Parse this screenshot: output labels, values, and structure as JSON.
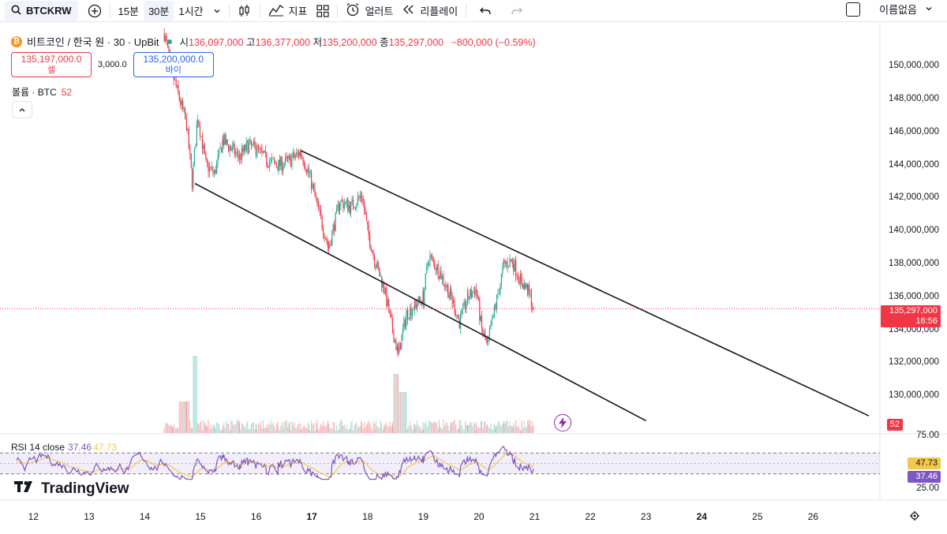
{
  "toolbar": {
    "symbol": "BTCKRW",
    "intervals": [
      "15분",
      "30분",
      "1시간"
    ],
    "active_interval": "30분",
    "indicators_label": "지표",
    "alert_label": "얼러트",
    "replay_label": "리플레이",
    "layout_name": "이름없음"
  },
  "legend": {
    "title": "비트코인 / 한국 원 · 30 · UpBit",
    "open_label": "시",
    "open": "136,097,000",
    "high_label": "고",
    "high": "136,377,000",
    "low_label": "저",
    "low": "135,200,000",
    "close_label": "종",
    "close": "135,297,000",
    "change": "−800,000 (−0.59%)"
  },
  "trade": {
    "sell_price": "135,197,000.0",
    "sell_label": "셀",
    "spread": "3,000.0",
    "buy_price": "135,200,000.0",
    "buy_label": "바이"
  },
  "volume": {
    "label": "볼륨 · BTC",
    "value": "52"
  },
  "rsi": {
    "label": "RSI 14 close",
    "value": "37.46",
    "ma": "47.73",
    "upper": "75.00",
    "lower": "25.00"
  },
  "brand": "TradingView",
  "price_scale": [
    "150,000,000",
    "148,000,000",
    "146,000,000",
    "144,000,000",
    "142,000,000",
    "140,000,000",
    "138,000,000",
    "136,000,000",
    "134,000,000",
    "132,000,000",
    "130,000,000"
  ],
  "last_price": {
    "value": "135,297,000",
    "countdown": "16:56"
  },
  "volume_tag": "52",
  "x_axis": [
    "12",
    "13",
    "14",
    "15",
    "16",
    "17",
    "18",
    "19",
    "20",
    "21",
    "22",
    "23",
    "24",
    "25",
    "26"
  ],
  "x_axis_bold": [
    "17",
    "24"
  ],
  "colors": {
    "up": "#22ab94",
    "down": "#f23645",
    "rsi": "#7e57c2",
    "rsi_ma": "#f2c84b",
    "last_price": "#f23645",
    "buy": "#2962ff"
  },
  "chart_data": {
    "type": "candlestick",
    "price_path": [
      [
        14.35,
        152.0
      ],
      [
        14.5,
        149.5
      ],
      [
        14.6,
        148.3
      ],
      [
        14.75,
        146.5
      ],
      [
        14.85,
        143.0
      ],
      [
        14.95,
        147.0
      ],
      [
        15.1,
        144.0
      ],
      [
        15.25,
        143.5
      ],
      [
        15.4,
        145.5
      ],
      [
        15.55,
        145.0
      ],
      [
        15.7,
        144.5
      ],
      [
        15.85,
        145.2
      ],
      [
        16.0,
        145.0
      ],
      [
        16.2,
        144.3
      ],
      [
        16.4,
        144.0
      ],
      [
        16.6,
        144.3
      ],
      [
        16.8,
        144.8
      ],
      [
        16.95,
        143.5
      ],
      [
        17.1,
        141.5
      ],
      [
        17.3,
        139.0
      ],
      [
        17.5,
        141.8
      ],
      [
        17.7,
        141.5
      ],
      [
        17.9,
        142.2
      ],
      [
        18.0,
        140.0
      ],
      [
        18.15,
        138.0
      ],
      [
        18.3,
        136.5
      ],
      [
        18.45,
        134.0
      ],
      [
        18.55,
        132.5
      ],
      [
        18.7,
        135.0
      ],
      [
        18.85,
        135.5
      ],
      [
        19.0,
        136.0
      ],
      [
        19.1,
        138.5
      ],
      [
        19.3,
        137.5
      ],
      [
        19.5,
        136.0
      ],
      [
        19.65,
        134.5
      ],
      [
        19.8,
        136.0
      ],
      [
        19.95,
        136.5
      ],
      [
        20.05,
        134.0
      ],
      [
        20.15,
        133.0
      ],
      [
        20.3,
        135.5
      ],
      [
        20.45,
        138.0
      ],
      [
        20.6,
        138.2
      ],
      [
        20.75,
        137.0
      ],
      [
        20.9,
        136.3
      ],
      [
        20.98,
        135.3
      ]
    ],
    "channel_upper": [
      [
        16.8,
        144.9
      ],
      [
        27.0,
        128.8
      ]
    ],
    "channel_lower": [
      [
        14.9,
        142.9
      ],
      [
        23.0,
        128.5
      ]
    ],
    "rsi_range": [
      25,
      75
    ],
    "rsi_last": 37.46,
    "rsi_ma_last": 47.73,
    "y_range": [
      128.5,
      151.5
    ],
    "x_range": [
      11.4,
      27.2
    ]
  }
}
